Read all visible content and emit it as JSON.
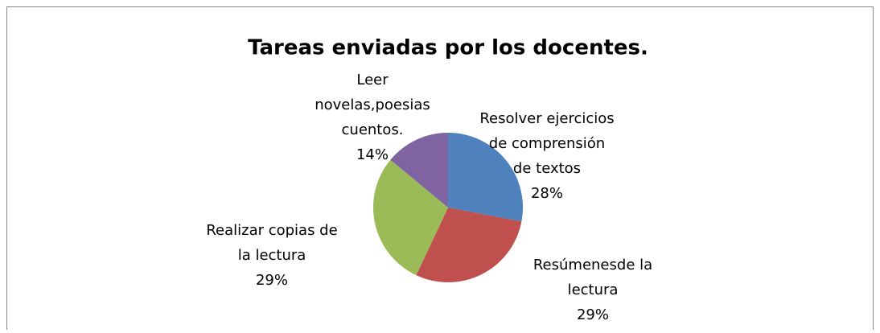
{
  "chart_data": {
    "type": "pie",
    "title": "Tareas enviadas por los docentes.",
    "categories": [
      "Resolver ejercicios de comprensión de textos",
      "Resúmenesde la lectura",
      "Realizar copias de la lectura",
      "Leer novelas,poesias cuentos."
    ],
    "values": [
      28,
      29,
      29,
      14
    ],
    "value_labels": [
      "28%",
      "29%",
      "29%",
      "14%"
    ],
    "colors": [
      "#4f81bd",
      "#c0504d",
      "#9bbb59",
      "#8064a2"
    ]
  }
}
